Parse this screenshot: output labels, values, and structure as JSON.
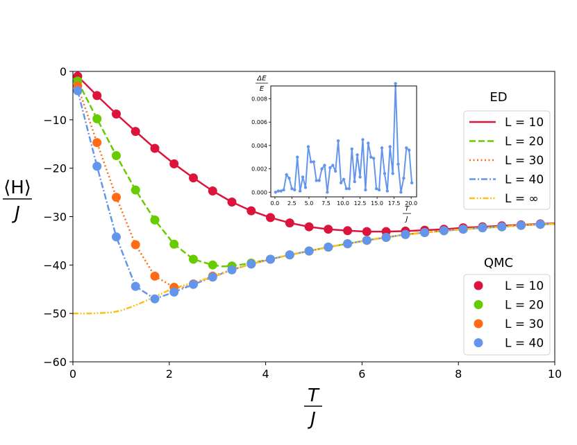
{
  "chart_data": {
    "type": "line",
    "xlabel": {
      "num": "T",
      "den": "J"
    },
    "ylabel": {
      "num": "⟨H⟩",
      "den": "J"
    },
    "xlim": [
      0,
      10
    ],
    "ylim": [
      -60,
      0
    ],
    "xticks": [
      0,
      2,
      4,
      6,
      8,
      10
    ],
    "yticks": [
      0,
      -10,
      -20,
      -30,
      -40,
      -50,
      -60
    ],
    "xtick_labels": [
      "0",
      "2",
      "4",
      "6",
      "8",
      "10"
    ],
    "ytick_labels": [
      "0",
      "−10",
      "−20",
      "−30",
      "−40",
      "−50",
      "−60"
    ],
    "legend_ed": {
      "title": "ED",
      "placement": "upper-right",
      "entries": [
        "L = 10",
        "L = 20",
        "L = 30",
        "L = 40",
        "L = ∞"
      ]
    },
    "legend_qmc": {
      "title": "QMC",
      "placement": "lower-right",
      "entries": [
        "L = 10",
        "L = 20",
        "L = 30",
        "L = 40"
      ]
    },
    "series_ed": [
      {
        "name": "L = 10",
        "color": "#dc143c",
        "dash": "solid",
        "x": [
          0.1,
          0.5,
          0.9,
          1.3,
          1.7,
          2.1,
          2.5,
          2.9,
          3.3,
          3.7,
          4.1,
          4.5,
          4.9,
          5.3,
          5.7,
          6.1,
          6.5,
          6.9,
          7.3,
          7.7,
          8.1,
          8.5,
          8.9,
          9.3,
          9.7,
          10.0
        ],
        "y": [
          -1,
          -5,
          -8.8,
          -12.4,
          -15.9,
          -19.1,
          -22,
          -24.7,
          -27,
          -28.8,
          -30.2,
          -31.3,
          -32.1,
          -32.6,
          -32.9,
          -33.1,
          -33.1,
          -33,
          -32.8,
          -32.6,
          -32.3,
          -32.1,
          -31.9,
          -31.7,
          -31.5,
          -31.4
        ]
      },
      {
        "name": "L = 20",
        "color": "#66cc00",
        "dash": "dashed",
        "x": [
          0.1,
          0.5,
          0.9,
          1.3,
          1.7,
          2.1,
          2.5,
          2.9,
          3.1,
          3.3,
          3.7,
          4.1,
          4.5,
          4.9,
          5.3,
          5.7,
          6.1,
          6.5,
          6.9,
          7.3,
          7.7,
          8.1,
          8.5,
          8.9,
          9.3,
          9.7,
          10.0
        ],
        "y": [
          -2,
          -9.8,
          -17.4,
          -24.5,
          -30.7,
          -35.7,
          -38.8,
          -40,
          -40.3,
          -40.2,
          -39.6,
          -38.8,
          -37.9,
          -37.1,
          -36.3,
          -35.6,
          -34.9,
          -34.3,
          -33.7,
          -33.3,
          -32.9,
          -32.6,
          -32.3,
          -32.1,
          -31.8,
          -31.6,
          -31.5
        ]
      },
      {
        "name": "L = 30",
        "color": "#ff6a13",
        "dash": "dotted",
        "x": [
          0.1,
          0.5,
          0.9,
          1.3,
          1.7,
          2.1,
          2.3,
          2.5,
          2.9,
          3.3,
          3.7,
          4.1,
          4.5,
          4.9,
          5.3,
          5.7,
          6.1,
          6.5,
          6.9,
          7.3,
          7.7,
          8.1,
          8.5,
          8.9,
          9.3,
          9.7,
          10.0
        ],
        "y": [
          -3,
          -14.7,
          -26,
          -35.8,
          -42.3,
          -44.6,
          -44.6,
          -43.9,
          -42.3,
          -41,
          -39.8,
          -38.8,
          -37.9,
          -37.1,
          -36.3,
          -35.6,
          -34.9,
          -34.3,
          -33.7,
          -33.3,
          -32.9,
          -32.6,
          -32.3,
          -32.1,
          -31.8,
          -31.6,
          -31.5
        ]
      },
      {
        "name": "L = 40",
        "color": "#6495ed",
        "dash": "dashdot",
        "x": [
          0.1,
          0.5,
          0.9,
          1.3,
          1.7,
          2.1,
          2.5,
          2.9,
          3.3,
          3.7,
          4.1,
          4.5,
          4.9,
          5.3,
          5.7,
          6.1,
          6.5,
          6.9,
          7.3,
          7.7,
          8.1,
          8.5,
          8.9,
          9.3,
          9.7,
          10.0
        ],
        "y": [
          -4,
          -19.6,
          -34.2,
          -44.4,
          -47,
          -45.6,
          -44,
          -42.5,
          -41,
          -39.8,
          -38.8,
          -37.9,
          -37.1,
          -36.3,
          -35.6,
          -34.9,
          -34.3,
          -33.7,
          -33.3,
          -32.9,
          -32.6,
          -32.3,
          -32.1,
          -31.8,
          -31.6,
          -31.5
        ]
      },
      {
        "name": "L = ∞",
        "color": "#ffbf1a",
        "dash": "dashdotdot",
        "x": [
          0.0,
          0.4,
          0.8,
          1.0,
          1.2,
          1.4,
          1.6,
          1.8,
          2.0,
          2.2,
          2.5,
          2.9,
          3.3,
          3.7,
          4.1,
          4.5,
          4.9,
          5.3,
          5.7,
          6.1,
          6.5,
          6.9,
          7.3,
          7.7,
          8.1,
          8.5,
          8.9,
          9.3,
          9.7,
          10.0
        ],
        "y": [
          -50,
          -50,
          -49.8,
          -49.4,
          -48.7,
          -47.9,
          -47,
          -46.1,
          -45.2,
          -44.5,
          -43.6,
          -42.5,
          -41,
          -39.8,
          -38.8,
          -37.9,
          -37.1,
          -36.3,
          -35.6,
          -34.9,
          -34.3,
          -33.7,
          -33.3,
          -32.9,
          -32.6,
          -32.3,
          -32.1,
          -31.8,
          -31.6,
          -31.5
        ]
      }
    ],
    "series_qmc": [
      {
        "name": "L = 10",
        "color": "#dc143c",
        "x": [
          0.1,
          0.5,
          0.9,
          1.3,
          1.7,
          2.1,
          2.5,
          2.9,
          3.3,
          3.7,
          4.1,
          4.5,
          4.9,
          5.3,
          5.7,
          6.1,
          6.5,
          6.9,
          7.3,
          7.7,
          8.1,
          8.5,
          8.9,
          9.3,
          9.7
        ],
        "y": [
          -1,
          -5,
          -8.8,
          -12.4,
          -15.9,
          -19.1,
          -22,
          -24.7,
          -27,
          -28.8,
          -30.2,
          -31.3,
          -32.1,
          -32.6,
          -32.9,
          -33.1,
          -33.1,
          -33,
          -32.8,
          -32.6,
          -32.3,
          -32.1,
          -31.9,
          -31.7,
          -31.5
        ]
      },
      {
        "name": "L = 20",
        "color": "#66cc00",
        "x": [
          0.1,
          0.5,
          0.9,
          1.3,
          1.7,
          2.1,
          2.5,
          2.9,
          3.3,
          3.7,
          4.1,
          4.5,
          4.9,
          5.3,
          5.7,
          6.1,
          6.5,
          6.9,
          7.3,
          7.7,
          8.1,
          8.5,
          8.9,
          9.3,
          9.7
        ],
        "y": [
          -2,
          -9.8,
          -17.4,
          -24.5,
          -30.7,
          -35.7,
          -38.8,
          -40,
          -40.2,
          -39.6,
          -38.8,
          -37.9,
          -37.1,
          -36.3,
          -35.6,
          -34.9,
          -34.3,
          -33.7,
          -33.3,
          -32.9,
          -32.6,
          -32.3,
          -32.1,
          -31.8,
          -31.6
        ]
      },
      {
        "name": "L = 30",
        "color": "#ff6a13",
        "x": [
          0.1,
          0.5,
          0.9,
          1.3,
          1.7,
          2.1,
          2.5,
          2.9,
          3.3,
          3.7,
          4.1,
          4.5,
          4.9,
          5.3,
          5.7,
          6.1,
          6.5,
          6.9,
          7.3,
          7.7,
          8.1,
          8.5,
          8.9,
          9.3,
          9.7
        ],
        "y": [
          -3,
          -14.7,
          -26,
          -35.8,
          -42.3,
          -44.6,
          -43.9,
          -42.3,
          -41,
          -39.8,
          -38.8,
          -37.9,
          -37.1,
          -36.3,
          -35.6,
          -34.9,
          -34.3,
          -33.7,
          -33.3,
          -32.9,
          -32.6,
          -32.3,
          -32.1,
          -31.8,
          -31.6
        ]
      },
      {
        "name": "L = 40",
        "color": "#6495ed",
        "x": [
          0.1,
          0.5,
          0.9,
          1.3,
          1.7,
          2.1,
          2.5,
          2.9,
          3.3,
          3.7,
          4.1,
          4.5,
          4.9,
          5.3,
          5.7,
          6.1,
          6.5,
          6.9,
          7.3,
          7.7,
          8.1,
          8.5,
          8.9,
          9.3,
          9.7
        ],
        "y": [
          -4,
          -19.6,
          -34.2,
          -44.4,
          -47,
          -45.6,
          -44,
          -42.5,
          -41,
          -39.8,
          -38.8,
          -37.9,
          -37.1,
          -36.3,
          -35.6,
          -34.9,
          -34.3,
          -33.7,
          -33.3,
          -32.9,
          -32.6,
          -32.3,
          -32.1,
          -31.8,
          -31.6
        ]
      }
    ],
    "inset": {
      "type": "line",
      "ylabel": {
        "num": "ΔE",
        "den": "E"
      },
      "xlabel": {
        "num": "T",
        "den": "J"
      },
      "xlim": [
        -0.6,
        20.8
      ],
      "ylim": [
        -0.0004,
        0.0091
      ],
      "xticks": [
        0,
        2.5,
        5,
        7.5,
        10,
        12.5,
        15,
        17.5,
        20
      ],
      "xtick_labels": [
        "0.0",
        "2.5",
        "5.0",
        "7.5",
        "10.0",
        "12.5",
        "15.0",
        "17.5",
        "20.0"
      ],
      "yticks": [
        0,
        0.002,
        0.004,
        0.006,
        0.008
      ],
      "ytick_labels": [
        "0.000",
        "0.002",
        "0.004",
        "0.006",
        "0.008"
      ],
      "color": "#6495ed",
      "x": [
        0.1,
        0.5,
        0.9,
        1.3,
        1.7,
        2.1,
        2.5,
        2.9,
        3.3,
        3.7,
        4.1,
        4.5,
        4.9,
        5.3,
        5.7,
        6.1,
        6.5,
        6.9,
        7.3,
        7.7,
        8.1,
        8.5,
        8.9,
        9.3,
        9.7,
        10.1,
        10.5,
        10.9,
        11.3,
        11.7,
        12.1,
        12.5,
        12.9,
        13.3,
        13.7,
        14.1,
        14.5,
        14.9,
        15.3,
        15.7,
        16.1,
        16.5,
        16.9,
        17.3,
        17.7,
        18.1,
        18.5,
        18.9,
        19.3,
        19.7,
        20.1
      ],
      "y": [
        0.0,
        0.0001,
        0.0001,
        0.0002,
        0.0015,
        0.0012,
        0.0003,
        0.0002,
        0.003,
        0.0001,
        0.0013,
        0.0004,
        0.0039,
        0.0026,
        0.0026,
        0.001,
        0.001,
        0.002,
        0.0023,
        0.0,
        0.0021,
        0.0023,
        0.0018,
        0.0044,
        0.0008,
        0.0011,
        0.0003,
        0.0003,
        0.0037,
        0.0009,
        0.0032,
        0.0013,
        0.0045,
        0.0002,
        0.0042,
        0.003,
        0.0029,
        0.0003,
        0.0002,
        0.0038,
        0.0016,
        0.0001,
        0.0039,
        0.0016,
        0.0093,
        0.0024,
        0.0,
        0.0012,
        0.0038,
        0.0036,
        0.0008
      ]
    }
  }
}
